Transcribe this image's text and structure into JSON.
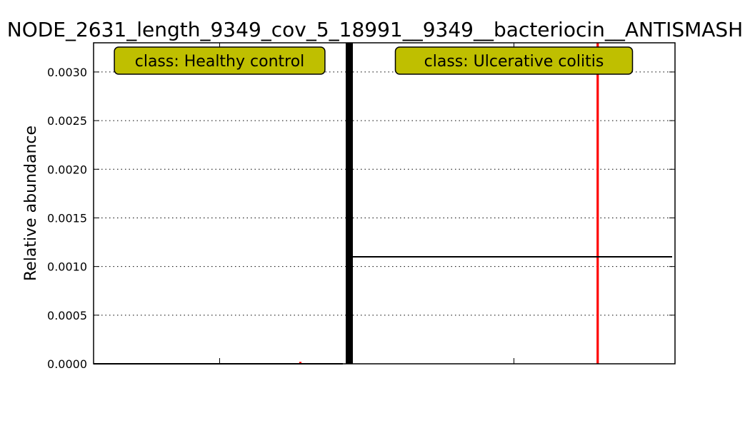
{
  "chart_data": {
    "type": "bar",
    "title": "NODE_2631_length_9349_cov_5_18991__9349__bacteriocin__ANTISMASH",
    "xlabel": "",
    "ylabel": "Relative abundance",
    "ylim": [
      0,
      0.0033
    ],
    "yticks": [
      "0.0000",
      "0.0005",
      "0.0010",
      "0.0015",
      "0.0020",
      "0.0025",
      "0.0030"
    ],
    "ytick_values": [
      0,
      0.0005,
      0.001,
      0.0015,
      0.002,
      0.0025,
      0.003
    ],
    "grid": true,
    "bar_color": "#ff0000",
    "class_box_color": "#bfbf00",
    "classes": [
      {
        "label": "class: Healthy control",
        "samples": [
          {
            "value": 2e-05
          }
        ],
        "mean": 0.0
      },
      {
        "label": "class: Ulcerative colitis",
        "samples": [
          {
            "value": 0.0033
          }
        ],
        "mean": 0.0011
      }
    ]
  }
}
